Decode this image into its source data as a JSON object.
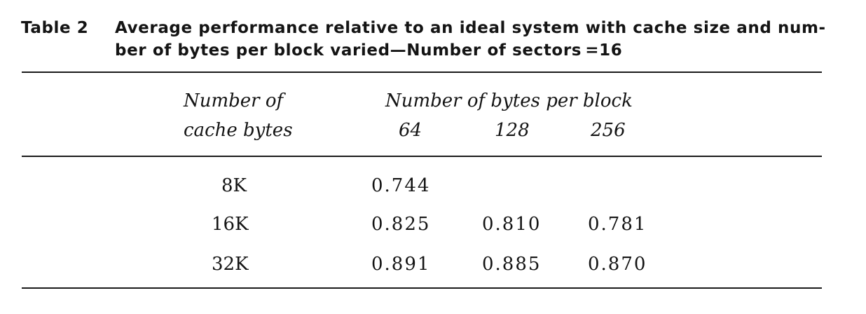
{
  "caption": {
    "label": "Table 2",
    "line1": "Average performance relative to an ideal system with cache size and num-",
    "line2": "ber of bytes per block varied—Number of sectors =16"
  },
  "table": {
    "row_header_line1": "Number of",
    "row_header_line2": "cache bytes",
    "col_group_header": "Number of bytes per block",
    "columns": [
      "64",
      "128",
      "256"
    ],
    "rows": [
      {
        "label": "8K",
        "values": [
          "0.744",
          "",
          ""
        ]
      },
      {
        "label": "16K",
        "values": [
          "0.825",
          "0.810",
          "0.781"
        ]
      },
      {
        "label": "32K",
        "values": [
          "0.891",
          "0.885",
          "0.870"
        ]
      }
    ]
  }
}
